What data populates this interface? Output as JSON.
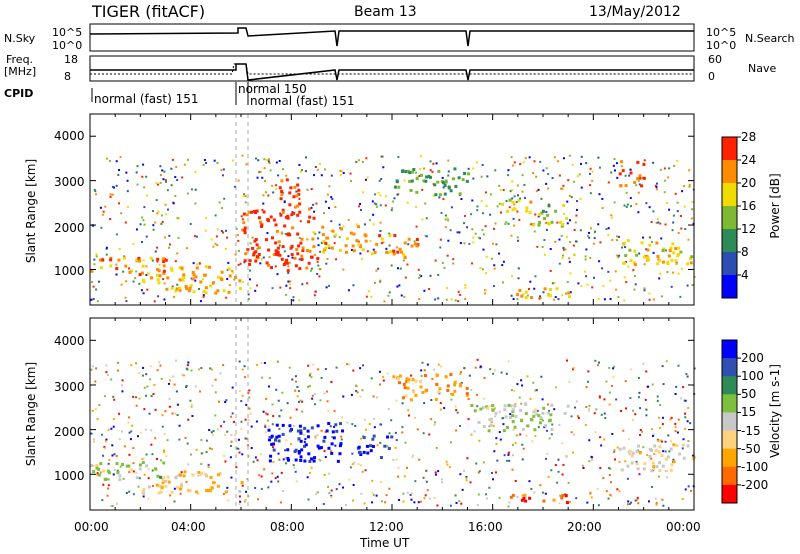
{
  "header": {
    "station": "TIGER (fitACF)",
    "beam": "Beam 13",
    "date": "13/May/2012"
  },
  "top_panels": {
    "nsky": {
      "label": "N.Sky",
      "ticks": [
        "10^5",
        "10^0"
      ]
    },
    "nsearch": {
      "label": "N.Search",
      "ticks": [
        "10^5",
        "10^0"
      ]
    },
    "freq": {
      "label1": "Freq.",
      "label2": "[MHz]",
      "ticks": [
        "18",
        "8"
      ]
    },
    "nave": {
      "label": "Nave",
      "ticks": [
        "60",
        "0"
      ]
    },
    "cpid": {
      "label": "CPID",
      "segments": [
        "normal (fast) 151",
        "normal 150",
        "normal (fast) 151"
      ]
    }
  },
  "colors": {
    "line": "#000000",
    "frame": "#000000",
    "background": "#ffffff"
  },
  "chart_data": [
    {
      "type": "heatmap",
      "xlabel": "Time UT",
      "ylabel": "Slant Range [km]",
      "x_ticks": [
        "00:00",
        "04:00",
        "08:00",
        "12:00",
        "16:00",
        "20:00",
        "00:00"
      ],
      "x_range": [
        0,
        24
      ],
      "y_ticks": [
        "1000",
        "2000",
        "3000",
        "4000"
      ],
      "ylim": [
        200,
        4500
      ],
      "colorbar": {
        "label": "Power [dB]",
        "ticks": [
          "4",
          "8",
          "12",
          "16",
          "20",
          "24",
          "28"
        ],
        "range": [
          0,
          30
        ],
        "colors": [
          "#0000ff",
          "#2a4fb0",
          "#2e8b57",
          "#7fb832",
          "#f0dc00",
          "#ff8c00",
          "#ff2200"
        ]
      },
      "features": [
        {
          "t": [
            0,
            3
          ],
          "r": [
            900,
            1300
          ],
          "value": 24
        },
        {
          "t": [
            2,
            6
          ],
          "r": [
            500,
            1100
          ],
          "value": 22
        },
        {
          "t": [
            6,
            9
          ],
          "r": [
            1000,
            2400
          ],
          "value": 28
        },
        {
          "t": [
            7.5,
            8.3
          ],
          "r": [
            2200,
            3200
          ],
          "value": 27
        },
        {
          "t": [
            9,
            11
          ],
          "r": [
            1400,
            2000
          ],
          "value": 22
        },
        {
          "t": [
            11,
            13
          ],
          "r": [
            1300,
            1800
          ],
          "value": 24
        },
        {
          "t": [
            12,
            15
          ],
          "r": [
            2700,
            3300
          ],
          "value": 12
        },
        {
          "t": [
            16,
            17.5
          ],
          "r": [
            2300,
            2600
          ],
          "value": 18
        },
        {
          "t": [
            17.5,
            19
          ],
          "r": [
            2000,
            2500
          ],
          "value": 16
        },
        {
          "t": [
            21,
            24
          ],
          "r": [
            1100,
            1700
          ],
          "value": 20
        },
        {
          "t": [
            16.5,
            19
          ],
          "r": [
            400,
            600
          ],
          "value": 22
        },
        {
          "t": [
            21,
            22
          ],
          "r": [
            2900,
            3500
          ],
          "value": 26
        }
      ]
    },
    {
      "type": "heatmap",
      "xlabel": "Time UT",
      "ylabel": "Slant Range [km]",
      "x_ticks": [
        "00:00",
        "04:00",
        "08:00",
        "12:00",
        "16:00",
        "20:00",
        "00:00"
      ],
      "x_range": [
        0,
        24
      ],
      "y_ticks": [
        "1000",
        "2000",
        "3000",
        "4000"
      ],
      "ylim": [
        200,
        4500
      ],
      "colorbar": {
        "label": "Velocity [m s-1]",
        "ticks": [
          "200",
          "100",
          "50",
          "15",
          "-15",
          "-50",
          "-100",
          "-200"
        ],
        "range": [
          -250,
          250
        ],
        "colors": [
          "#ff0000",
          "#ff6a00",
          "#ffa500",
          "#ffd27f",
          "#c8c8c8",
          "#7fbf3f",
          "#2e8b57",
          "#3050b0",
          "#0000ff"
        ]
      },
      "features": [
        {
          "t": [
            0,
            3
          ],
          "r": [
            900,
            1300
          ],
          "value": 30
        },
        {
          "t": [
            2,
            6
          ],
          "r": [
            600,
            1100
          ],
          "value": -60
        },
        {
          "t": [
            7,
            10
          ],
          "r": [
            1300,
            2200
          ],
          "value": 220
        },
        {
          "t": [
            10.5,
            12
          ],
          "r": [
            1400,
            1900
          ],
          "value": 210
        },
        {
          "t": [
            12,
            15
          ],
          "r": [
            2700,
            3300
          ],
          "value": -120
        },
        {
          "t": [
            15,
            19
          ],
          "r": [
            2000,
            2600
          ],
          "value": 20
        },
        {
          "t": [
            21,
            24
          ],
          "r": [
            1100,
            1700
          ],
          "value": -40
        },
        {
          "t": [
            16.5,
            19
          ],
          "r": [
            400,
            600
          ],
          "value": -180
        }
      ]
    }
  ]
}
